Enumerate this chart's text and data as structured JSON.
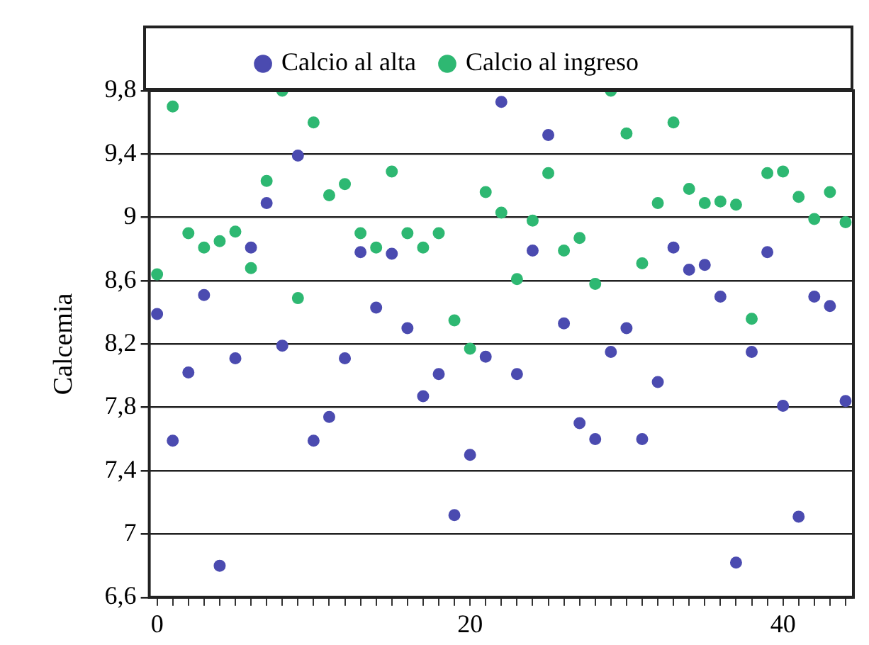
{
  "chart_data": {
    "type": "scatter",
    "ylabel": "Calcemia",
    "legend": "top",
    "grid": "y",
    "marker": "circle",
    "xlim": [
      -0.5,
      44.5
    ],
    "ylim": [
      6.6,
      9.8
    ],
    "xticks": [
      0,
      {
        "value": 1,
        "label": null
      },
      {
        "value": 2,
        "label": null
      },
      {
        "value": 3,
        "label": null
      },
      {
        "value": 4,
        "label": null
      },
      {
        "value": 5,
        "label": null
      },
      {
        "value": 6,
        "label": null
      },
      {
        "value": 7,
        "label": null
      },
      {
        "value": 8,
        "label": null
      },
      {
        "value": 9,
        "label": null
      },
      {
        "value": 10,
        "label": null
      },
      {
        "value": 11,
        "label": null
      },
      {
        "value": 12,
        "label": null
      },
      {
        "value": 13,
        "label": null
      },
      {
        "value": 14,
        "label": null
      },
      {
        "value": 15,
        "label": null
      },
      {
        "value": 16,
        "label": null
      },
      {
        "value": 17,
        "label": null
      },
      {
        "value": 18,
        "label": null
      },
      {
        "value": 19,
        "label": null
      },
      20,
      {
        "value": 21,
        "label": null
      },
      {
        "value": 22,
        "label": null
      },
      {
        "value": 23,
        "label": null
      },
      {
        "value": 24,
        "label": null
      },
      {
        "value": 25,
        "label": null
      },
      {
        "value": 26,
        "label": null
      },
      {
        "value": 27,
        "label": null
      },
      {
        "value": 28,
        "label": null
      },
      {
        "value": 29,
        "label": null
      },
      {
        "value": 30,
        "label": null
      },
      {
        "value": 31,
        "label": null
      },
      {
        "value": 32,
        "label": null
      },
      {
        "value": 33,
        "label": null
      },
      {
        "value": 34,
        "label": null
      },
      {
        "value": 35,
        "label": null
      },
      {
        "value": 36,
        "label": null
      },
      {
        "value": 37,
        "label": null
      },
      {
        "value": 38,
        "label": null
      },
      {
        "value": 39,
        "label": null
      },
      40,
      {
        "value": 41,
        "label": null
      },
      {
        "value": 42,
        "label": null
      },
      {
        "value": 43,
        "label": null
      },
      {
        "value": 44,
        "label": null
      }
    ],
    "yticks": [
      {
        "value": 6.6,
        "label": "6,6"
      },
      {
        "value": 7,
        "label": "7"
      },
      {
        "value": 7.4,
        "label": "7,4"
      },
      {
        "value": 7.8,
        "label": "7,8"
      },
      {
        "value": 8.2,
        "label": "8,2"
      },
      {
        "value": 8.6,
        "label": "8,6"
      },
      {
        "value": 9,
        "label": "9"
      },
      {
        "value": 9.4,
        "label": "9,4"
      },
      {
        "value": 9.8,
        "label": "9,8"
      }
    ],
    "x": [
      0,
      1,
      2,
      3,
      4,
      5,
      6,
      7,
      8,
      9,
      10,
      11,
      12,
      13,
      14,
      15,
      16,
      17,
      18,
      19,
      20,
      21,
      22,
      23,
      24,
      25,
      26,
      27,
      28,
      29,
      30,
      31,
      32,
      33,
      34,
      35,
      36,
      37,
      38,
      39,
      40,
      41,
      42,
      43,
      44
    ],
    "series": [
      {
        "name": "Calcio al alta",
        "color": "#4b4bb0",
        "values": [
          8.39,
          7.59,
          8.02,
          8.51,
          6.8,
          8.11,
          8.81,
          9.09,
          8.19,
          9.39,
          7.59,
          7.74,
          8.11,
          8.78,
          8.43,
          8.77,
          8.3,
          7.87,
          8.01,
          7.12,
          7.5,
          8.12,
          9.73,
          8.01,
          8.79,
          9.52,
          8.33,
          7.7,
          7.6,
          8.15,
          8.3,
          7.6,
          7.96,
          8.81,
          8.67,
          8.7,
          8.5,
          6.82,
          8.15,
          8.78,
          7.81,
          7.11,
          8.5,
          8.44,
          7.84
        ]
      },
      {
        "name": "Calcio al ingreso",
        "color": "#2eb872",
        "values": [
          8.64,
          9.7,
          8.9,
          8.81,
          8.85,
          8.91,
          8.68,
          9.23,
          9.8,
          8.49,
          9.6,
          9.14,
          9.21,
          8.9,
          8.81,
          9.29,
          8.9,
          8.81,
          8.9,
          8.35,
          8.17,
          9.16,
          9.03,
          8.61,
          8.98,
          9.28,
          8.79,
          8.87,
          8.58,
          9.8,
          9.53,
          8.71,
          9.09,
          9.6,
          9.18,
          9.09,
          9.1,
          9.08,
          8.36,
          9.28,
          9.29,
          9.13,
          8.99,
          9.16,
          8.97
        ]
      }
    ]
  }
}
